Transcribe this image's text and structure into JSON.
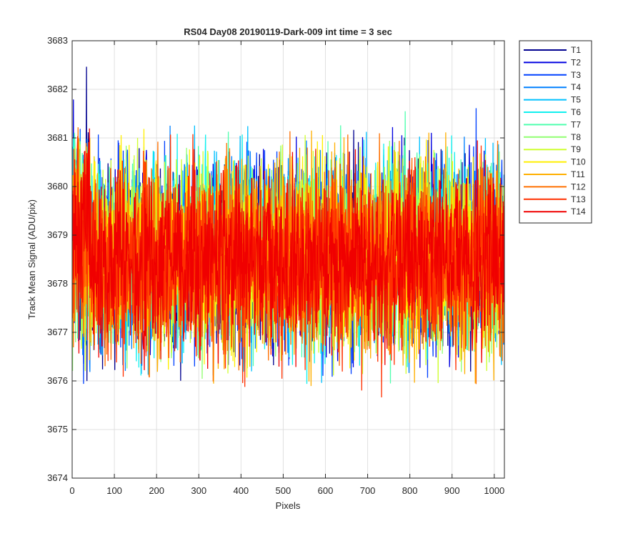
{
  "chart_data": {
    "type": "line",
    "title": "RS04 Day08 20190119-Dark-009 int time = 3 sec",
    "xlabel": "Pixels",
    "ylabel": "Track Mean Signal (ADU/pix)",
    "xlim": [
      0,
      1024
    ],
    "ylim": [
      3674,
      3683
    ],
    "xticks": [
      0,
      100,
      200,
      300,
      400,
      500,
      600,
      700,
      800,
      900,
      1000
    ],
    "yticks": [
      3674,
      3675,
      3676,
      3677,
      3678,
      3679,
      3680,
      3681,
      3682,
      3683
    ],
    "grid": true,
    "legend_position": "outside-top-right",
    "series": [
      {
        "name": "T1",
        "color": "#00008F",
        "mean": 3678.6,
        "spread": 1.0
      },
      {
        "name": "T2",
        "color": "#0000E0",
        "mean": 3678.6,
        "spread": 1.0
      },
      {
        "name": "T3",
        "color": "#0040FF",
        "mean": 3678.6,
        "spread": 1.0
      },
      {
        "name": "T4",
        "color": "#0080FF",
        "mean": 3678.6,
        "spread": 1.0
      },
      {
        "name": "T5",
        "color": "#00C0FF",
        "mean": 3678.6,
        "spread": 1.0
      },
      {
        "name": "T6",
        "color": "#10F0EF",
        "mean": 3678.6,
        "spread": 1.0
      },
      {
        "name": "T7",
        "color": "#50FFAF",
        "mean": 3678.6,
        "spread": 1.0
      },
      {
        "name": "T8",
        "color": "#90FF70",
        "mean": 3678.6,
        "spread": 1.0
      },
      {
        "name": "T9",
        "color": "#CFFF30",
        "mean": 3678.6,
        "spread": 1.0
      },
      {
        "name": "T10",
        "color": "#FFEF00",
        "mean": 3678.6,
        "spread": 1.0
      },
      {
        "name": "T11",
        "color": "#FFAF00",
        "mean": 3678.5,
        "spread": 1.0
      },
      {
        "name": "T12",
        "color": "#FF7000",
        "mean": 3678.5,
        "spread": 1.0
      },
      {
        "name": "T13",
        "color": "#FF3000",
        "mean": 3678.5,
        "spread": 1.0
      },
      {
        "name": "T14",
        "color": "#F00000",
        "mean": 3678.5,
        "spread": 1.0
      }
    ]
  }
}
